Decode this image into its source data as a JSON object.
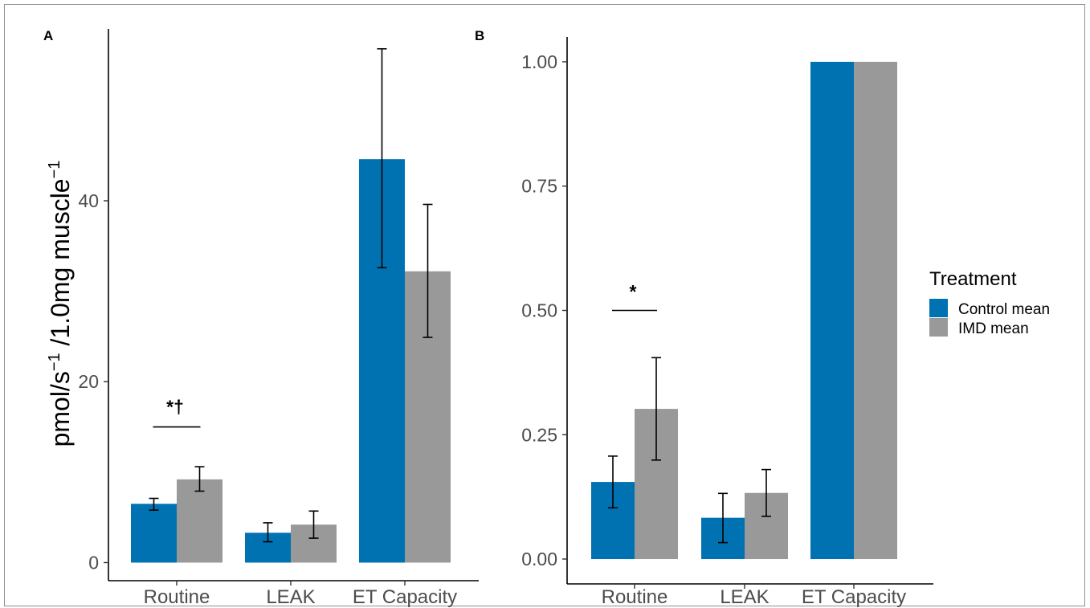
{
  "figure": {
    "legend": {
      "title": "Treatment",
      "items": [
        {
          "label": "Control mean",
          "color": "#0072b2"
        },
        {
          "label": "IMD mean",
          "color": "#999999"
        }
      ]
    }
  },
  "chart_data": [
    {
      "type": "bar",
      "panel": "A",
      "title": "",
      "ylabel_parts": {
        "a": "pmol/s",
        "b": "−1",
        "c": " /1.0mg muscle",
        "d": "−1"
      },
      "categories": [
        "Routine",
        "LEAK",
        "ET Capacity"
      ],
      "ylim": [
        -2,
        59
      ],
      "yticks": [
        0,
        20,
        40
      ],
      "series": [
        {
          "name": "Control mean",
          "color": "#0072b2",
          "values": [
            6.5,
            3.3,
            44.6
          ],
          "error_low": [
            5.8,
            2.3,
            32.6
          ],
          "error_high": [
            7.1,
            4.4,
            56.8
          ]
        },
        {
          "name": "IMD mean",
          "color": "#999999",
          "values": [
            9.2,
            4.2,
            32.2
          ],
          "error_low": [
            7.9,
            2.7,
            24.9
          ],
          "error_high": [
            10.6,
            5.7,
            39.6
          ]
        }
      ],
      "annotations": [
        {
          "text": "*†",
          "category": "Routine",
          "bar_y": 15.0,
          "text_y": 16.5
        }
      ],
      "grid": false,
      "legend_position": "right"
    },
    {
      "type": "bar",
      "panel": "B",
      "title": "",
      "categories": [
        "Routine",
        "LEAK",
        "ET Capacity"
      ],
      "ylim": [
        -0.05,
        1.05
      ],
      "yticks": [
        "0.00",
        "0.25",
        "0.50",
        "0.75",
        "1.00"
      ],
      "series": [
        {
          "name": "Control mean",
          "color": "#0072b2",
          "values": [
            0.155,
            0.083,
            1.0
          ],
          "error_low": [
            0.103,
            0.033,
            1.0
          ],
          "error_high": [
            0.207,
            0.132,
            1.0
          ]
        },
        {
          "name": "IMD mean",
          "color": "#999999",
          "values": [
            0.302,
            0.133,
            1.0
          ],
          "error_low": [
            0.199,
            0.086,
            1.0
          ],
          "error_high": [
            0.405,
            0.18,
            1.0
          ]
        }
      ],
      "annotations": [
        {
          "text": "*",
          "category": "Routine",
          "bar_y": 0.5,
          "text_y": 0.525
        }
      ],
      "grid": false,
      "legend_position": "right"
    }
  ]
}
